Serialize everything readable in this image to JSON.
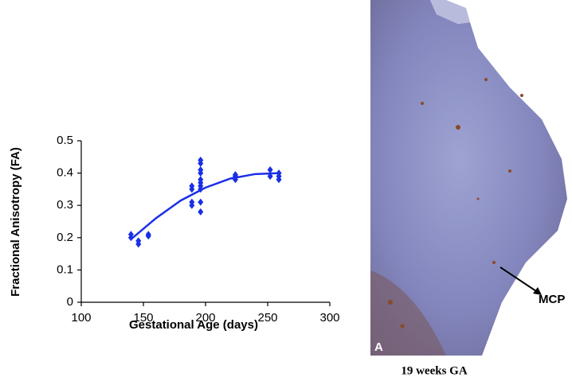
{
  "chart_data": {
    "type": "scatter",
    "xlabel": "Gestational Age (days)",
    "ylabel": "Fractional Anisotropy (FA)",
    "xlim": [
      100,
      300
    ],
    "xticks": [
      100,
      150,
      200,
      250,
      300
    ],
    "ylim": [
      0,
      0.5
    ],
    "yticks": [
      0,
      0.1,
      0.2,
      0.3,
      0.4,
      0.5
    ],
    "color": "#1a2fe6",
    "x": [
      140,
      140,
      146,
      146,
      154,
      154,
      189,
      189,
      189,
      189,
      196,
      196,
      196,
      196,
      196,
      196,
      196,
      196,
      196,
      196,
      224,
      224,
      224,
      252,
      252,
      259,
      259,
      259
    ],
    "values": [
      0.21,
      0.2,
      0.19,
      0.18,
      0.21,
      0.205,
      0.36,
      0.35,
      0.31,
      0.3,
      0.44,
      0.43,
      0.41,
      0.4,
      0.38,
      0.37,
      0.36,
      0.35,
      0.31,
      0.28,
      0.39,
      0.38,
      0.395,
      0.41,
      0.39,
      0.39,
      0.38,
      0.4
    ],
    "trend": {
      "x": [
        140,
        160,
        180,
        200,
        220,
        240,
        260
      ],
      "values": [
        0.195,
        0.26,
        0.315,
        0.355,
        0.383,
        0.397,
        0.4
      ]
    }
  },
  "figure": {
    "panel_label": "A",
    "annotation": "MCP",
    "caption": "19 weeks GA"
  }
}
